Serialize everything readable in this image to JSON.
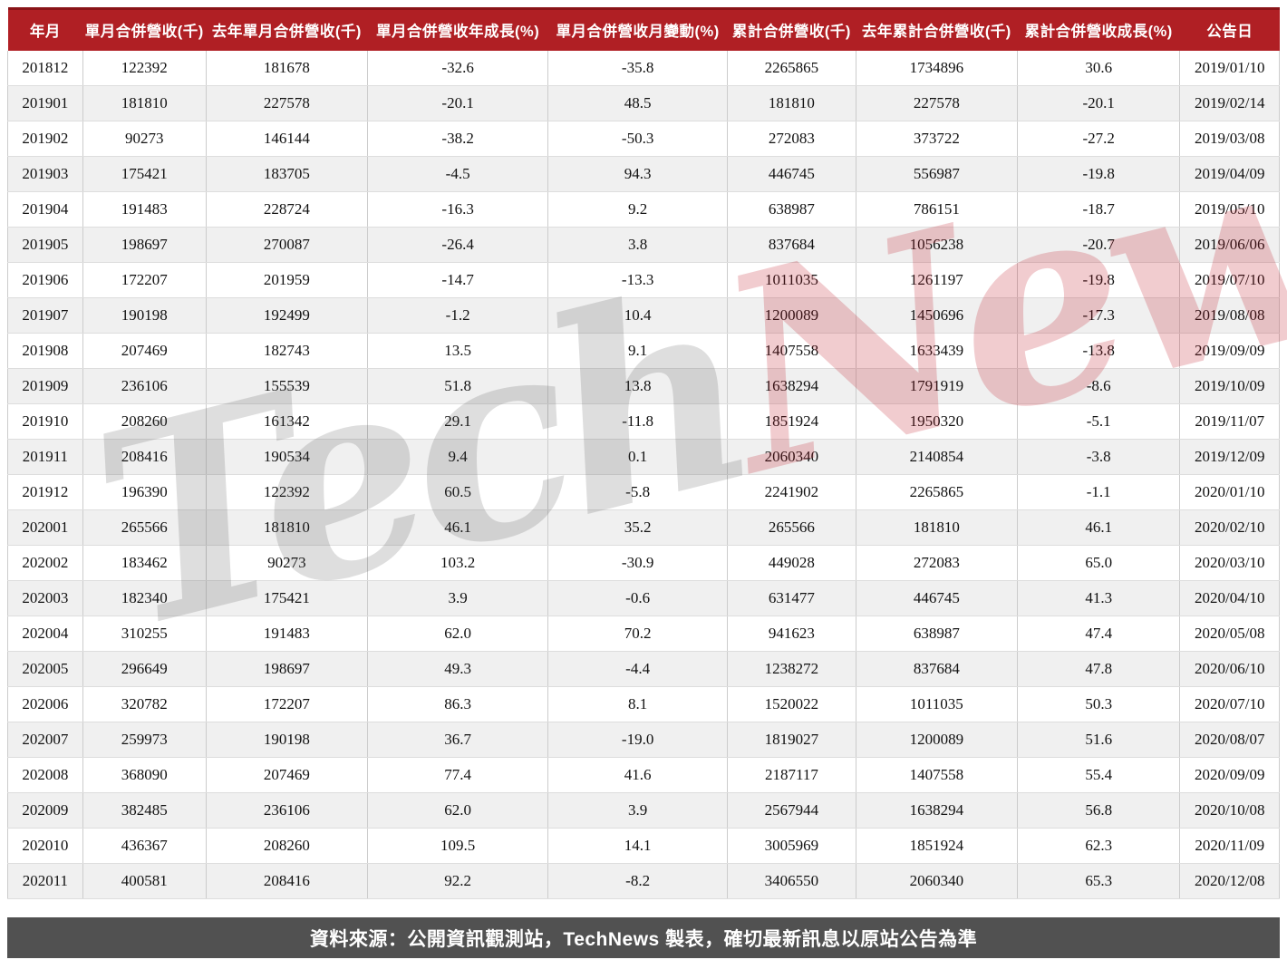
{
  "chart_data": {
    "type": "table",
    "title": "月營收表 (monthly consolidated revenue table)",
    "columns": [
      "年月",
      "單月合併營收(千)",
      "去年單月合併營收(千)",
      "單月合併營收年成長(%)",
      "單月合併營收月變動(%)",
      "累計合併營收(千)",
      "去年累計合併營收(千)",
      "累計合併營收成長(%)",
      "公告日"
    ],
    "rows": [
      [
        "201812",
        "122392",
        "181678",
        "-32.6",
        "-35.8",
        "2265865",
        "1734896",
        "30.6",
        "2019/01/10"
      ],
      [
        "201901",
        "181810",
        "227578",
        "-20.1",
        "48.5",
        "181810",
        "227578",
        "-20.1",
        "2019/02/14"
      ],
      [
        "201902",
        "90273",
        "146144",
        "-38.2",
        "-50.3",
        "272083",
        "373722",
        "-27.2",
        "2019/03/08"
      ],
      [
        "201903",
        "175421",
        "183705",
        "-4.5",
        "94.3",
        "446745",
        "556987",
        "-19.8",
        "2019/04/09"
      ],
      [
        "201904",
        "191483",
        "228724",
        "-16.3",
        "9.2",
        "638987",
        "786151",
        "-18.7",
        "2019/05/10"
      ],
      [
        "201905",
        "198697",
        "270087",
        "-26.4",
        "3.8",
        "837684",
        "1056238",
        "-20.7",
        "2019/06/06"
      ],
      [
        "201906",
        "172207",
        "201959",
        "-14.7",
        "-13.3",
        "1011035",
        "1261197",
        "-19.8",
        "2019/07/10"
      ],
      [
        "201907",
        "190198",
        "192499",
        "-1.2",
        "10.4",
        "1200089",
        "1450696",
        "-17.3",
        "2019/08/08"
      ],
      [
        "201908",
        "207469",
        "182743",
        "13.5",
        "9.1",
        "1407558",
        "1633439",
        "-13.8",
        "2019/09/09"
      ],
      [
        "201909",
        "236106",
        "155539",
        "51.8",
        "13.8",
        "1638294",
        "1791919",
        "-8.6",
        "2019/10/09"
      ],
      [
        "201910",
        "208260",
        "161342",
        "29.1",
        "-11.8",
        "1851924",
        "1950320",
        "-5.1",
        "2019/11/07"
      ],
      [
        "201911",
        "208416",
        "190534",
        "9.4",
        "0.1",
        "2060340",
        "2140854",
        "-3.8",
        "2019/12/09"
      ],
      [
        "201912",
        "196390",
        "122392",
        "60.5",
        "-5.8",
        "2241902",
        "2265865",
        "-1.1",
        "2020/01/10"
      ],
      [
        "202001",
        "265566",
        "181810",
        "46.1",
        "35.2",
        "265566",
        "181810",
        "46.1",
        "2020/02/10"
      ],
      [
        "202002",
        "183462",
        "90273",
        "103.2",
        "-30.9",
        "449028",
        "272083",
        "65.0",
        "2020/03/10"
      ],
      [
        "202003",
        "182340",
        "175421",
        "3.9",
        "-0.6",
        "631477",
        "446745",
        "41.3",
        "2020/04/10"
      ],
      [
        "202004",
        "310255",
        "191483",
        "62.0",
        "70.2",
        "941623",
        "638987",
        "47.4",
        "2020/05/08"
      ],
      [
        "202005",
        "296649",
        "198697",
        "49.3",
        "-4.4",
        "1238272",
        "837684",
        "47.8",
        "2020/06/10"
      ],
      [
        "202006",
        "320782",
        "172207",
        "86.3",
        "8.1",
        "1520022",
        "1011035",
        "50.3",
        "2020/07/10"
      ],
      [
        "202007",
        "259973",
        "190198",
        "36.7",
        "-19.0",
        "1819027",
        "1200089",
        "51.6",
        "2020/08/07"
      ],
      [
        "202008",
        "368090",
        "207469",
        "77.4",
        "41.6",
        "2187117",
        "1407558",
        "55.4",
        "2020/09/09"
      ],
      [
        "202009",
        "382485",
        "236106",
        "62.0",
        "3.9",
        "2567944",
        "1638294",
        "56.8",
        "2020/10/08"
      ],
      [
        "202010",
        "436367",
        "208260",
        "109.5",
        "14.1",
        "3005969",
        "1851924",
        "62.3",
        "2020/11/09"
      ],
      [
        "202011",
        "400581",
        "208416",
        "92.2",
        "-8.2",
        "3406550",
        "2060340",
        "65.3",
        "2020/12/08"
      ]
    ],
    "column_widths_pct": [
      5.9,
      9.7,
      12.7,
      14.2,
      14.1,
      10.1,
      12.7,
      12.8,
      7.8
    ],
    "stripe": "even rows shaded"
  },
  "watermark": {
    "part1": "Tech",
    "part2": "News"
  },
  "footer": {
    "text": "資料來源：公開資訊觀測站，TechNews 製表，確切最新訊息以原站公告為準"
  },
  "colors": {
    "header_bg": "#b01f24",
    "header_top": "#8a1418",
    "row_alt": "#f0f0f0",
    "border_v": "#cccccc",
    "border_h": "#dddddd",
    "footer_bg": "#515151",
    "watermark_gray": "rgba(70,70,70,0.18)",
    "watermark_red": "rgba(190,25,35,0.22)"
  }
}
